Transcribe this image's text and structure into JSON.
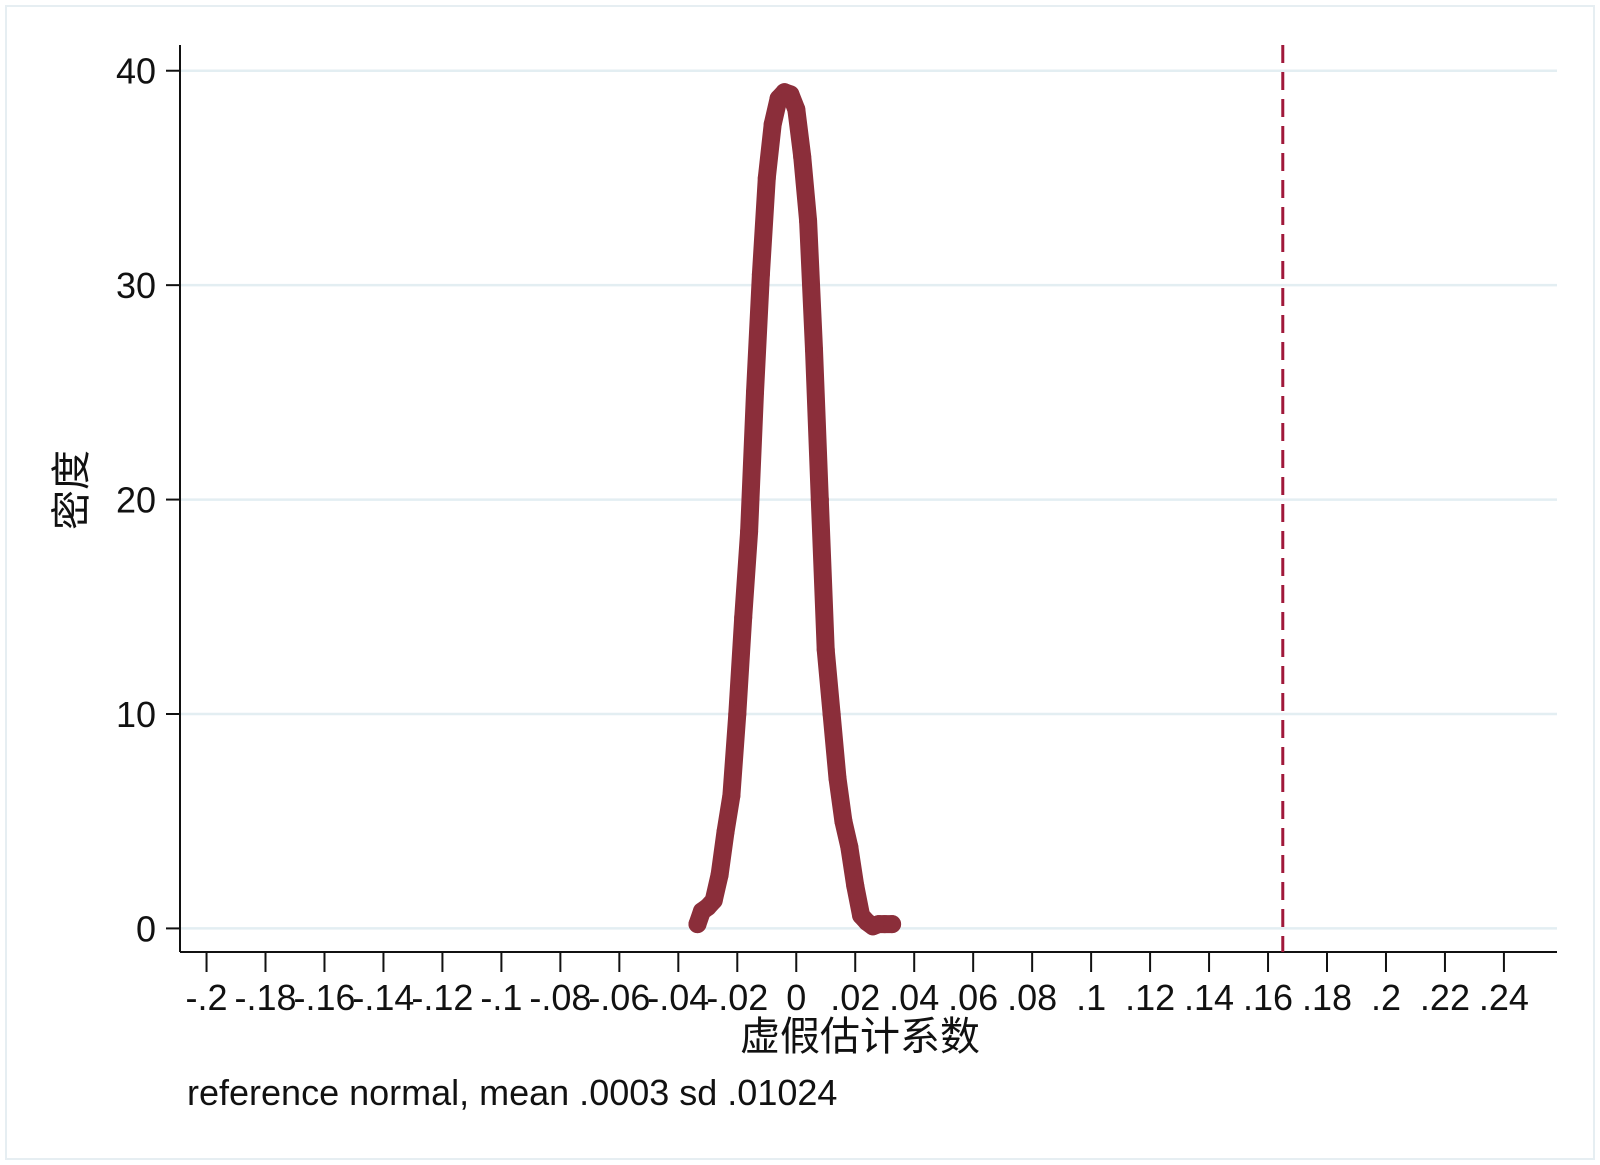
{
  "chart_data": {
    "type": "line",
    "title": "",
    "xlabel": "虚假估计系数",
    "ylabel": "密度",
    "note": "reference normal, mean .0003 sd .01024",
    "xlim": [
      -0.209,
      0.258
    ],
    "ylim": [
      -1.1,
      41.2
    ],
    "x_ticks": [
      -0.2,
      -0.18,
      -0.16,
      -0.14,
      -0.12,
      -0.1,
      -0.08,
      -0.06,
      -0.04,
      -0.02,
      0,
      0.02,
      0.04,
      0.06,
      0.08,
      0.1,
      0.12,
      0.14,
      0.16,
      0.18,
      0.2,
      0.22,
      0.24
    ],
    "x_tick_labels": [
      "-.2",
      "-.18",
      "-.16",
      "-.14",
      "-.12",
      "-.1",
      "-.08",
      "-.06",
      "-.04",
      "-.02",
      "0",
      ".02",
      ".04",
      ".06",
      ".08",
      ".1",
      ".12",
      ".14",
      ".16",
      ".18",
      ".2",
      ".22",
      ".24"
    ],
    "y_ticks": [
      0,
      10,
      20,
      30,
      40
    ],
    "y_tick_labels": [
      "0",
      "10",
      "20",
      "30",
      "40"
    ],
    "grid": true,
    "series": [
      {
        "x": [
          -0.0335,
          -0.032,
          -0.03,
          -0.028,
          -0.026,
          -0.024,
          -0.022,
          -0.02,
          -0.018,
          -0.016,
          -0.014,
          -0.012,
          -0.01,
          -0.008,
          -0.006,
          -0.004,
          -0.002,
          0,
          0.002,
          0.004,
          0.006,
          0.008,
          0.01,
          0.012,
          0.014,
          0.016,
          0.018,
          0.02,
          0.022,
          0.024,
          0.026,
          0.028,
          0.03,
          0.0325
        ],
        "y": [
          0.2,
          0.8,
          1.0,
          1.3,
          2.5,
          4.5,
          6.2,
          10.0,
          14.5,
          18.5,
          25.0,
          30.5,
          35.0,
          37.5,
          38.7,
          39.0,
          38.9,
          38.2,
          36.0,
          33.0,
          27.0,
          20.0,
          13.0,
          10.0,
          7.0,
          5.0,
          3.8,
          2.0,
          0.6,
          0.3,
          0.1,
          0.2,
          0.2,
          0.2
        ],
        "color": "#8b2e3a"
      }
    ],
    "reference_line": {
      "x": 0.165,
      "color": "#a0183a",
      "style": "dashed"
    }
  }
}
